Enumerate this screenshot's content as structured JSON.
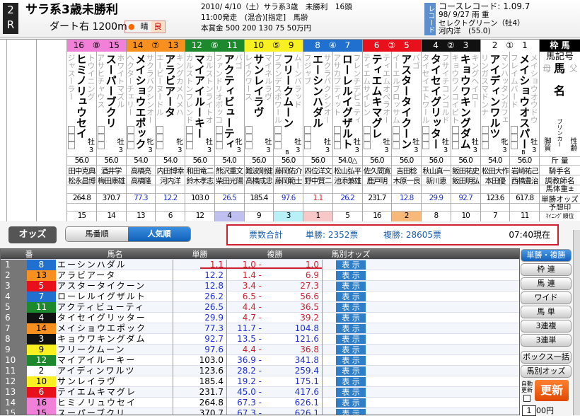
{
  "race": {
    "number_top": "2",
    "number_bottom": "R",
    "name": "サラ系3歳未勝利",
    "course": "ダート右 1200m",
    "weather": "晴",
    "track": "良",
    "info1": "2010/ 4/10（土）サラ系3歳　未勝利　16頭",
    "info2": "11:00発走　(混合)[指定]　馬齢",
    "info3": "本賞金 500 200 130 75 50万円",
    "record_label": "レコード",
    "record_time": "コースレコード: 1.09.7",
    "record_date": "98/ 9/27 雨 重",
    "record_horse": "セレクトグリーン（牡4）",
    "record_jockey": "河内洋　(55.0)"
  },
  "frame_colors": {
    "1": "#ffffff",
    "2": "#111111",
    "3": "#e8101a",
    "4": "#2070d0",
    "5": "#f8f020",
    "6": "#1c8a2c",
    "7": "#f89020",
    "8": "#f080d8"
  },
  "frames": [
    {
      "label": "16　⑧　15",
      "frame": "8"
    },
    {
      "label": "14　⑦　13",
      "frame": "7"
    },
    {
      "label": "12　⑥　11",
      "frame": "6"
    },
    {
      "label": "10　⑤　9",
      "frame": "5"
    },
    {
      "label": "8　④　7",
      "frame": "4"
    },
    {
      "label": "6　③　5",
      "frame": "3"
    },
    {
      "label": "4　②　3",
      "frame": "2"
    },
    {
      "label": "2　①　1",
      "frame": "1"
    }
  ],
  "horses": [
    {
      "no": 16,
      "name": "ヒミノリュウセイ",
      "sire": "トウイニング",
      "dam": "ジャスーラー",
      "sex": "牡",
      "age": "3",
      "blinker": "",
      "weight": "56.0",
      "jockey": "田中克典",
      "trainer": "松永昌博",
      "odds": "264.8",
      "rank": "15"
    },
    {
      "no": 15,
      "name": "スーパーブクリ",
      "sire": "ホワイトマズル",
      "dam": "アサヒチャウス",
      "sex": "牡",
      "age": "3",
      "blinker": "",
      "weight": "56.0",
      "jockey": "酒井学",
      "trainer": "梅田康雄",
      "odds": "370.7",
      "rank": "14"
    },
    {
      "no": 14,
      "name": "メイショウエポック",
      "sire": "サクラバクシンオー",
      "dam": "ヘクターチェリー",
      "sex": "牝",
      "age": "3",
      "blinker": "",
      "weight": "54.0",
      "jockey": "高橋亮",
      "trainer": "高橋隆",
      "odds": "77.3",
      "rank": "13"
    },
    {
      "no": 13,
      "name": "アラビアータ",
      "sire": "キングカメハメハ",
      "dam": "エービーヌードル",
      "sex": "牝",
      "age": "3",
      "blinker": "",
      "weight": "54.0",
      "jockey": "内田博幸",
      "trainer": "河内洋",
      "odds": "12.2",
      "rank": "6"
    },
    {
      "no": 12,
      "name": "マイアイルーキー",
      "sire": "カルストンライトオ",
      "dam": "カルストンフレンド",
      "sex": "牡",
      "age": "3",
      "blinker": "",
      "weight": "56.0",
      "jockey": "和田竜二",
      "trainer": "鈴木孝志",
      "odds": "103.0",
      "rank": "12"
    },
    {
      "no": 11,
      "name": "アクティビューティ",
      "sire": "バゴ",
      "dam": "ファンドリオボッコ",
      "sex": "牝",
      "age": "3",
      "blinker": "",
      "weight": "54.0",
      "jockey": "熊沢重文",
      "trainer": "柴田光陽",
      "odds": "26.5",
      "rank": "4"
    },
    {
      "no": 10,
      "name": "サンレイラヴ",
      "sire": "マイネルラヴ",
      "dam": "レイクワース",
      "sex": "牡",
      "age": "3",
      "blinker": "",
      "weight": "56.0",
      "jockey": "難波剛健",
      "trainer": "高橋成忠",
      "odds": "185.4",
      "rank": "9"
    },
    {
      "no": 9,
      "name": "フリークムーン",
      "sire": "ムーンバラッド",
      "dam": "プランデスポワール",
      "sex": "牡",
      "age": "3",
      "blinker": "B",
      "weight": "56.0",
      "jockey": "藤岡佑介",
      "trainer": "藤岡範士",
      "odds": "97.6",
      "rank": "3"
    },
    {
      "no": 8,
      "name": "エーシンハダル",
      "sire": "サクラバクシンオー",
      "dam": "フジャブ",
      "sex": "牡",
      "age": "3",
      "blinker": "",
      "weight": "56.0",
      "jockey": "四位洋文",
      "trainer": "野中賢二",
      "odds": "1.1",
      "rank": "1"
    },
    {
      "no": 7,
      "name": "ローレルイグザルト",
      "sire": "フレンチデピュティ",
      "dam": "アサカプティット",
      "sex": "牡",
      "age": "3",
      "blinker": "",
      "weight": "54.0△",
      "jockey": "松山弘平",
      "trainer": "池添兼雄",
      "odds": "26.2",
      "rank": "5"
    },
    {
      "no": 6,
      "name": "ティエムキマグレ",
      "sire": "ティエムオペラオー",
      "dam": "ティエムサイレン",
      "sex": "牡",
      "age": "3",
      "blinker": "",
      "weight": "56.0",
      "jockey": "佐久間寛",
      "trainer": "鹿戸明",
      "odds": "231.7",
      "rank": "16"
    },
    {
      "no": 5,
      "name": "アスタータイクーン",
      "sire": "バゴ",
      "dam": "イーエルブロッサム",
      "sex": "牡",
      "age": "3",
      "blinker": "",
      "weight": "56.0",
      "jockey": "吉田稔",
      "trainer": "木原一良",
      "odds": "12.8",
      "rank": "2"
    },
    {
      "no": 4,
      "name": "タイセイグリッター",
      "sire": "フサイチコンコルド",
      "dam": "タイセイエトワール",
      "sex": "牡",
      "age": "3",
      "blinker": "",
      "weight": "56.0",
      "jockey": "秋山真一",
      "trainer": "新川恵",
      "odds": "29.9",
      "rank": "8"
    },
    {
      "no": 3,
      "name": "キョウワキングダム",
      "sire": "キングヘイロー",
      "dam": "キョウワノコイビト",
      "sex": "牡",
      "age": "3",
      "blinker": "",
      "weight": "56.0",
      "jockey": "飯田祐史",
      "trainer": "飯田明弘",
      "odds": "92.7",
      "rank": "10"
    },
    {
      "no": 2,
      "name": "アイディンワルツ",
      "sire": "マンハッタンカフェ",
      "dam": "リンガスマドンナ",
      "sex": "牝",
      "age": "3",
      "blinker": "",
      "weight": "54.0",
      "jockey": "松田大作",
      "trainer": "本田優",
      "odds": "123.6",
      "rank": "7"
    },
    {
      "no": 1,
      "name": "メイショウオスパー",
      "sire": "メイショウオウドウ",
      "dam": "フレイムバード",
      "sex": "牡",
      "age": "3",
      "blinker": "B",
      "weight": "56.0",
      "jockey": "岩崎祐己",
      "trainer": "西橋豊治",
      "odds": "617.8",
      "rank": "11"
    }
  ],
  "row_labels": {
    "frame": "枠 馬",
    "mark": "馬記号",
    "dam": "母",
    "horse": "馬",
    "sire": "父",
    "name": "名",
    "blinker": "ブリンカー",
    "style": "脚質",
    "sexage": "性齢",
    "weight": "斤 量",
    "jockey": "騎手名",
    "trainer": "調教師名",
    "body": "馬体重±",
    "odds": "単勝オッズ",
    "pred": "予想印",
    "mining": "ﾏｲﾆﾝｸﾞ順位"
  },
  "rank_highlight": {
    "1": "#f8c8c8",
    "2": "#f8b878",
    "3": "#b8f0f8",
    "4": "#c0c0f0"
  },
  "toolbar": {
    "odds_label": "オッズ",
    "sort_number": "馬番順",
    "sort_popular": "人気順",
    "total_label": "票数合計",
    "win_votes": "単勝: 2352票",
    "place_votes": "複勝: 28605票",
    "as_of": "07:40現在"
  },
  "odds_header": {
    "rank": "番",
    "name": "馬名",
    "win": "単勝",
    "place": "複勝",
    "detail": "馬別オッズ"
  },
  "odds_rows": [
    {
      "rank": "1",
      "no": "8",
      "name": "エーシンハダル",
      "win": "1.1",
      "plo": "1.0 -",
      "plh": "1.0"
    },
    {
      "rank": "2",
      "no": "13",
      "name": "アラビアータ",
      "win": "12.2",
      "plo": "1.4 -",
      "plh": "6.9"
    },
    {
      "rank": "3",
      "no": "5",
      "name": "アスタータイクーン",
      "win": "12.8",
      "plo": "3.4 -",
      "plh": "27.3"
    },
    {
      "rank": "4",
      "no": "7",
      "name": "ローレルイグザルト",
      "win": "26.2",
      "plo": "6.5 -",
      "plh": "56.6"
    },
    {
      "rank": "5",
      "no": "11",
      "name": "アクティビューティ",
      "win": "26.5",
      "plo": "4.4 -",
      "plh": "36.5"
    },
    {
      "rank": "6",
      "no": "4",
      "name": "タイセイグリッター",
      "win": "29.9",
      "plo": "4.7 -",
      "plh": "39.2"
    },
    {
      "rank": "7",
      "no": "14",
      "name": "メイショウエポック",
      "win": "77.3",
      "plo": "11.7 -",
      "plh": "104.8"
    },
    {
      "rank": "8",
      "no": "3",
      "name": "キョウワキングダム",
      "win": "92.7",
      "plo": "13.5 -",
      "plh": "121.6"
    },
    {
      "rank": "9",
      "no": "9",
      "name": "フリークムーン",
      "win": "97.6",
      "plo": "4.4 -",
      "plh": "36.8"
    },
    {
      "rank": "10",
      "no": "12",
      "name": "マイアイルーキー",
      "win": "103.0",
      "plo": "36.9 -",
      "plh": "341.8"
    },
    {
      "rank": "11",
      "no": "2",
      "name": "アイディンワルツ",
      "win": "123.6",
      "plo": "28.2 -",
      "plh": "259.4"
    },
    {
      "rank": "12",
      "no": "10",
      "name": "サンレイラヴ",
      "win": "185.4",
      "plo": "19.2 -",
      "plh": "175.1"
    },
    {
      "rank": "13",
      "no": "6",
      "name": "テイエムキマグレ",
      "win": "231.7",
      "plo": "45.0 -",
      "plh": "417.6"
    },
    {
      "rank": "14",
      "no": "16",
      "name": "ヒミノリュウセイ",
      "win": "264.8",
      "plo": "67.3 -",
      "plh": "626.1"
    },
    {
      "rank": "15",
      "no": "15",
      "name": "スーパーブクリ",
      "win": "370.7",
      "plo": "67.3 -",
      "plh": "626.1"
    }
  ],
  "show_label": "表 示",
  "side_buttons": [
    "単勝・複勝",
    "枠 連",
    "馬 連",
    "ワイド",
    "馬 単",
    "3連複",
    "3連単",
    "ボックス一括",
    "馬別オッズ"
  ],
  "auto_update": "自動更新",
  "update": "更新",
  "amount": "1",
  "amount_unit": "00円"
}
